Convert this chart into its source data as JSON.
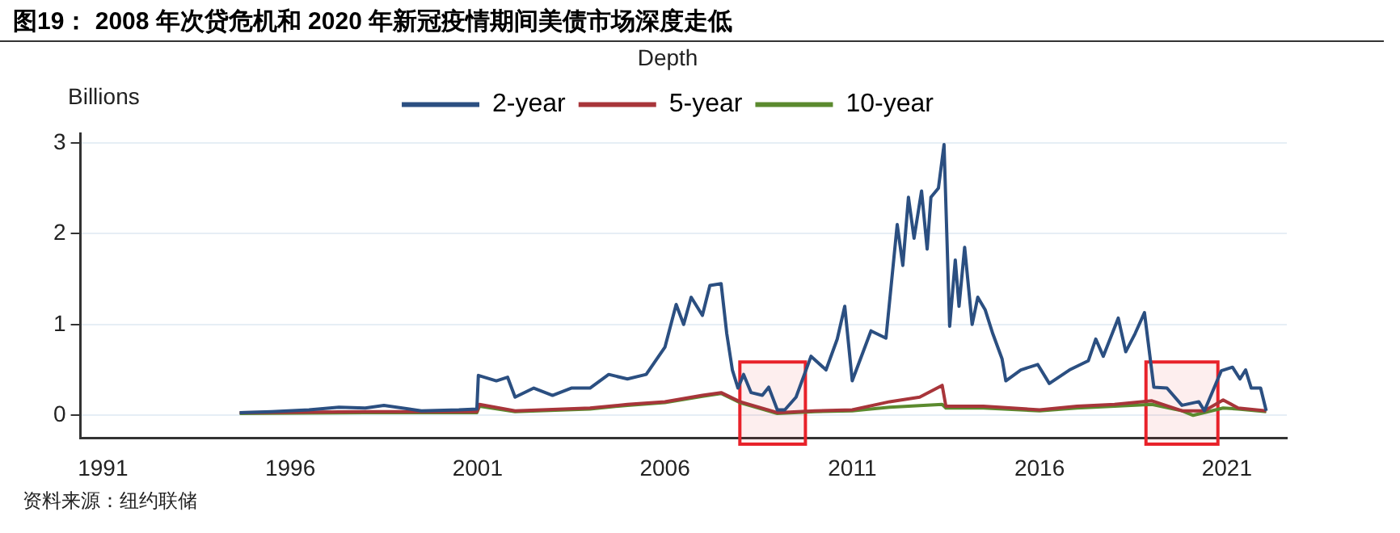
{
  "chart_data": {
    "type": "line",
    "title": "图19：  2008 年次贷危机和 2020 年新冠疫情期间美债市场深度走低",
    "subtitle": "Depth",
    "ylabel": "Billions",
    "annotations": [
      "资料来源：纽约联储"
    ],
    "xlim": [
      1990.4,
      2022.6
    ],
    "xticks": [
      1991,
      1996,
      2001,
      2006,
      2011,
      2016,
      2021
    ],
    "ylim": [
      -0.25,
      3.1
    ],
    "yticks": [
      0,
      1,
      2,
      3
    ],
    "grid": "y",
    "legend": "top",
    "bands": [
      {
        "axis": "x",
        "from": 2008.0,
        "to": 2009.75,
        "color": "#e8222a"
      },
      {
        "axis": "x",
        "from": 2018.84,
        "to": 2020.76,
        "color": "#e8222a"
      }
    ],
    "series": [
      {
        "name": "2-year",
        "color": "#2b4f81",
        "x": [
          1994.65,
          1995.5,
          1996.5,
          1997.3,
          1998,
          1998.5,
          1999.5,
          2000.5,
          2000.98,
          2001.02,
          2001.5,
          2001.8,
          2002.0,
          2002.5,
          2003.0,
          2003.5,
          2004.0,
          2004.5,
          2005.0,
          2005.5,
          2006.0,
          2006.3,
          2006.5,
          2006.7,
          2007.0,
          2007.2,
          2007.5,
          2007.65,
          2007.8,
          2007.95,
          2008.1,
          2008.3,
          2008.6,
          2008.77,
          2009.0,
          2009.2,
          2009.5,
          2009.9,
          2010.3,
          2010.6,
          2010.8,
          2011.0,
          2011.5,
          2011.9,
          2012.2,
          2012.35,
          2012.5,
          2012.65,
          2012.85,
          2013.0,
          2013.1,
          2013.3,
          2013.45,
          2013.6,
          2013.75,
          2013.85,
          2014.0,
          2014.2,
          2014.35,
          2014.55,
          2014.75,
          2015.0,
          2015.1,
          2015.5,
          2015.95,
          2016.26,
          2016.8,
          2017.3,
          2017.5,
          2017.7,
          2018.1,
          2018.3,
          2018.55,
          2018.8,
          2018.9,
          2019.05,
          2019.4,
          2019.8,
          2020.25,
          2020.4,
          2020.85,
          2021.15,
          2021.35,
          2021.5,
          2021.65,
          2021.9,
          2022.05
        ],
        "values": [
          0.03,
          0.04,
          0.06,
          0.09,
          0.08,
          0.11,
          0.05,
          0.06,
          0.07,
          0.44,
          0.38,
          0.42,
          0.2,
          0.3,
          0.22,
          0.3,
          0.3,
          0.45,
          0.4,
          0.45,
          0.75,
          1.22,
          1.0,
          1.3,
          1.1,
          1.43,
          1.45,
          0.9,
          0.5,
          0.3,
          0.45,
          0.25,
          0.22,
          0.31,
          0.06,
          0.06,
          0.2,
          0.65,
          0.5,
          0.84,
          1.2,
          0.38,
          0.93,
          0.85,
          2.1,
          1.65,
          2.4,
          1.95,
          2.47,
          1.83,
          2.4,
          2.5,
          2.98,
          0.98,
          1.71,
          1.2,
          1.85,
          1.0,
          1.3,
          1.16,
          0.9,
          0.62,
          0.38,
          0.5,
          0.56,
          0.35,
          0.5,
          0.6,
          0.84,
          0.65,
          1.07,
          0.7,
          0.9,
          1.13,
          0.8,
          0.31,
          0.3,
          0.11,
          0.15,
          0.05,
          0.49,
          0.53,
          0.4,
          0.5,
          0.3,
          0.3,
          0.05
        ]
      },
      {
        "name": "5-year",
        "color": "#a8353a",
        "x": [
          1994.65,
          1998,
          2000.98,
          2001.05,
          2002,
          2004,
          2005,
          2006,
          2007,
          2007.5,
          2008,
          2009,
          2010,
          2011,
          2012,
          2012.8,
          2013.4,
          2013.5,
          2014.5,
          2016,
          2017,
          2018,
          2019,
          2019.8,
          2020.4,
          2020.9,
          2021.3,
          2022.05
        ],
        "values": [
          0.03,
          0.04,
          0.04,
          0.12,
          0.05,
          0.08,
          0.12,
          0.15,
          0.22,
          0.25,
          0.15,
          0.03,
          0.05,
          0.06,
          0.15,
          0.2,
          0.33,
          0.1,
          0.1,
          0.06,
          0.1,
          0.12,
          0.16,
          0.05,
          0.05,
          0.17,
          0.08,
          0.05
        ]
      },
      {
        "name": "10-year",
        "color": "#5b8a2e",
        "x": [
          1994.65,
          1998,
          2000.98,
          2001.05,
          2002,
          2004,
          2005,
          2006,
          2007,
          2007.5,
          2008,
          2009,
          2010,
          2011,
          2012,
          2013.4,
          2013.5,
          2014.5,
          2016,
          2017,
          2018,
          2019,
          2019.8,
          2020.1,
          2020.9,
          2021.3,
          2022.05
        ],
        "values": [
          0.02,
          0.03,
          0.03,
          0.1,
          0.04,
          0.07,
          0.11,
          0.14,
          0.21,
          0.24,
          0.14,
          0.02,
          0.04,
          0.05,
          0.09,
          0.12,
          0.08,
          0.08,
          0.05,
          0.08,
          0.1,
          0.12,
          0.05,
          0.0,
          0.08,
          0.07,
          0.04
        ]
      }
    ]
  }
}
